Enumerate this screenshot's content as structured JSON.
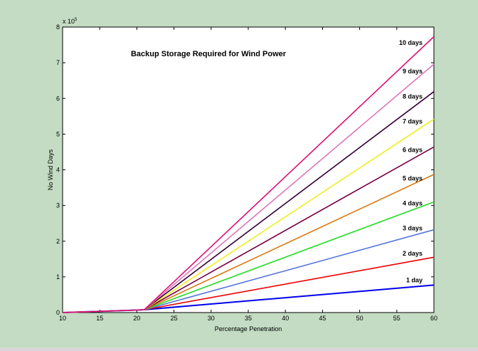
{
  "chart_data": {
    "type": "line",
    "title": "Backup Storage Required for Wind Power",
    "xlabel": "Percentage Penetration",
    "ylabel": "No Wind Days",
    "y_exponent_label": "x 10",
    "y_exponent_power": "5",
    "xlim": [
      10,
      60
    ],
    "ylim": [
      0,
      8
    ],
    "x_ticks": [
      10,
      15,
      20,
      25,
      30,
      35,
      40,
      45,
      50,
      55,
      60
    ],
    "y_ticks": [
      0,
      1,
      2,
      3,
      4,
      5,
      6,
      7,
      8
    ],
    "grid": false,
    "legend": "inline labels at right end of each line",
    "series": [
      {
        "name": "1 day",
        "color": "#0000ee",
        "x": [
          10,
          20,
          21,
          60
        ],
        "y": [
          0,
          0.07,
          0.08,
          0.77
        ]
      },
      {
        "name": "2 days",
        "color": "#ee0000",
        "x": [
          10,
          20,
          21,
          60
        ],
        "y": [
          0,
          0.07,
          0.08,
          1.55
        ]
      },
      {
        "name": "3 days",
        "color": "#5577dd",
        "x": [
          10,
          20,
          21,
          60
        ],
        "y": [
          0,
          0.07,
          0.08,
          2.32
        ]
      },
      {
        "name": "4 days",
        "color": "#22dd22",
        "x": [
          10,
          20,
          21,
          60
        ],
        "y": [
          0,
          0.07,
          0.08,
          3.1
        ]
      },
      {
        "name": "5 days",
        "color": "#dd7711",
        "x": [
          10,
          20,
          21,
          60
        ],
        "y": [
          0,
          0.07,
          0.08,
          3.87
        ]
      },
      {
        "name": "6 days",
        "color": "#770044",
        "x": [
          10,
          20,
          21,
          60
        ],
        "y": [
          0,
          0.07,
          0.08,
          4.64
        ]
      },
      {
        "name": "7 days",
        "color": "#eeee22",
        "x": [
          10,
          20,
          21,
          60
        ],
        "y": [
          0,
          0.07,
          0.08,
          5.42
        ]
      },
      {
        "name": "8 days",
        "color": "#330033",
        "x": [
          10,
          20,
          21,
          60
        ],
        "y": [
          0,
          0.07,
          0.08,
          6.19
        ]
      },
      {
        "name": "9 days",
        "color": "#dd77bb",
        "x": [
          10,
          20,
          21,
          60
        ],
        "y": [
          0,
          0.07,
          0.08,
          6.96
        ]
      },
      {
        "name": "10 days",
        "color": "#dd1177",
        "x": [
          10,
          20,
          21,
          60
        ],
        "y": [
          0,
          0.07,
          0.08,
          7.73
        ]
      }
    ],
    "series_label_y": [
      0.85,
      1.6,
      2.3,
      3.0,
      3.7,
      4.5,
      5.3,
      6.0,
      6.7,
      7.5
    ]
  }
}
